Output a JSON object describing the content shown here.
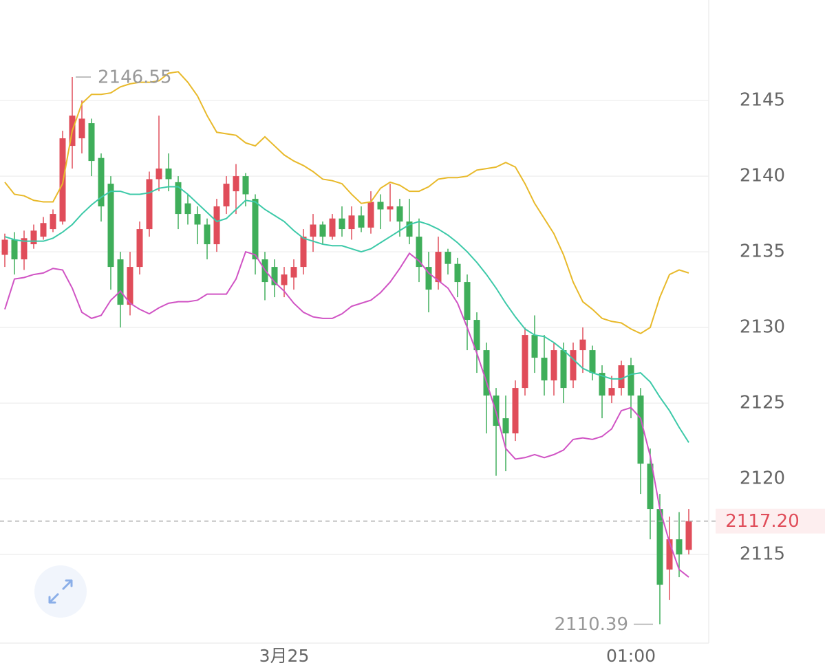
{
  "chart_data": {
    "type": "candlestick",
    "categories": [
      null,
      null,
      null,
      null,
      null,
      null,
      null,
      null,
      null,
      null,
      null,
      null,
      null,
      null,
      null,
      null,
      null,
      null,
      null,
      null,
      null,
      null,
      null,
      null,
      null,
      null,
      null,
      null,
      null,
      "3月25",
      null,
      null,
      null,
      null,
      null,
      null,
      null,
      null,
      null,
      null,
      null,
      null,
      null,
      null,
      null,
      null,
      null,
      null,
      null,
      null,
      null,
      null,
      null,
      null,
      null,
      null,
      null,
      null,
      null,
      null,
      null,
      null,
      null,
      null,
      null,
      "01:00",
      null,
      null,
      null,
      null,
      null,
      null
    ],
    "open": [
      2134.8,
      2135.8,
      2134.5,
      2135.5,
      2136.0,
      2136.5,
      2137.0,
      2142.0,
      2142.5,
      2143.5,
      2141.2,
      2139.5,
      2134.5,
      2131.5,
      2134.0,
      2136.5,
      2139.8,
      2140.5,
      2139.6,
      2138.2,
      2137.5,
      2136.8,
      2135.5,
      2138.0,
      2139.0,
      2140.0,
      2138.5,
      2134.5,
      2134.0,
      2132.8,
      2133.3,
      2134.0,
      2136.0,
      2136.8,
      2136.0,
      2137.2,
      2136.5,
      2137.4,
      2136.6,
      2138.3,
      2137.8,
      2138.0,
      2137.0,
      2136.0,
      2134.0,
      2133.0,
      2135.0,
      2134.2,
      2133.0,
      2130.5,
      2128.5,
      2125.5,
      2124.0,
      2123.0,
      2126.0,
      2129.5,
      2128.0,
      2126.5,
      2128.5,
      2126.5,
      2128.5,
      2128.5,
      2127.0,
      2125.5,
      2126.0,
      2127.5,
      2125.5,
      2121.0,
      2118.0,
      2114.0,
      2116.0,
      2115.3
    ],
    "high": [
      2136.2,
      2136.3,
      2136.4,
      2136.8,
      2137.3,
      2137.8,
      2143.0,
      2146.55,
      2145.0,
      2143.8,
      2141.5,
      2140.0,
      2135.0,
      2135.0,
      2137.0,
      2140.3,
      2144.0,
      2141.5,
      2140.0,
      2138.8,
      2138.0,
      2137.2,
      2138.5,
      2140.0,
      2140.8,
      2140.2,
      2138.8,
      2135.0,
      2134.5,
      2134.0,
      2134.5,
      2136.5,
      2137.5,
      2137.0,
      2137.5,
      2138.0,
      2138.0,
      2138.0,
      2139.0,
      2138.8,
      2139.5,
      2138.5,
      2138.5,
      2137.2,
      2135.0,
      2136.0,
      2135.2,
      2134.6,
      2133.5,
      2131.0,
      2129.0,
      2126.0,
      2125.5,
      2126.5,
      2130.0,
      2130.8,
      2129.5,
      2129.0,
      2129.0,
      2129.0,
      2130.0,
      2128.8,
      2127.5,
      2126.8,
      2127.8,
      2128.0,
      2126.0,
      2122.0,
      2119.0,
      2117.5,
      2117.8,
      2118.0
    ],
    "low": [
      2134.0,
      2133.5,
      2133.8,
      2135.2,
      2135.8,
      2136.3,
      2136.8,
      2140.5,
      2141.5,
      2140.0,
      2137.0,
      2132.5,
      2130.0,
      2130.8,
      2133.5,
      2136.0,
      2139.0,
      2139.0,
      2136.5,
      2136.8,
      2135.5,
      2134.5,
      2135.0,
      2137.5,
      2137.5,
      2138.0,
      2133.5,
      2131.8,
      2132.0,
      2132.0,
      2132.5,
      2133.5,
      2135.0,
      2135.5,
      2135.8,
      2136.0,
      2135.8,
      2136.3,
      2136.2,
      2136.5,
      2137.0,
      2136.0,
      2135.5,
      2133.0,
      2131.0,
      2132.5,
      2133.5,
      2132.0,
      2128.5,
      2127.0,
      2123.0,
      2120.2,
      2120.5,
      2122.5,
      2125.5,
      2127.0,
      2125.5,
      2125.5,
      2125.0,
      2126.0,
      2127.0,
      2126.5,
      2124.0,
      2125.0,
      2125.5,
      2124.0,
      2119.0,
      2116.0,
      2110.39,
      2112.0,
      2113.5,
      2115.0
    ],
    "close": [
      2135.8,
      2134.5,
      2135.9,
      2136.4,
      2136.9,
      2137.5,
      2142.5,
      2144.0,
      2143.8,
      2141.0,
      2138.0,
      2134.0,
      2131.5,
      2134.0,
      2136.5,
      2139.8,
      2140.5,
      2139.8,
      2137.5,
      2137.5,
      2136.8,
      2135.5,
      2138.0,
      2139.5,
      2140.0,
      2138.8,
      2134.5,
      2133.0,
      2132.8,
      2133.5,
      2134.0,
      2136.0,
      2136.8,
      2136.0,
      2137.2,
      2136.5,
      2137.4,
      2136.6,
      2138.3,
      2137.8,
      2138.0,
      2137.0,
      2136.0,
      2134.0,
      2132.5,
      2135.0,
      2134.2,
      2133.0,
      2130.5,
      2128.5,
      2125.5,
      2123.5,
      2123.0,
      2126.0,
      2129.5,
      2128.0,
      2126.5,
      2128.5,
      2126.0,
      2128.5,
      2129.2,
      2127.0,
      2125.5,
      2126.0,
      2127.5,
      2125.5,
      2121.0,
      2118.0,
      2113.0,
      2116.0,
      2115.0,
      2117.2
    ],
    "up_color": "#e04d5a",
    "down_color": "#3fae5a",
    "lines": [
      {
        "color": "#e8b92a",
        "values": [
          2139.6,
          2138.8,
          2138.7,
          2138.4,
          2138.3,
          2138.3,
          2139.5,
          2143.0,
          2144.8,
          2145.4,
          2145.4,
          2145.5,
          2145.9,
          2146.1,
          2146.2,
          2146.2,
          2146.3,
          2146.8,
          2146.9,
          2146.2,
          2145.3,
          2144.0,
          2142.9,
          2142.8,
          2142.7,
          2142.2,
          2142.0,
          2142.6,
          2142.0,
          2141.4,
          2141.0,
          2140.7,
          2140.3,
          2139.8,
          2139.7,
          2139.5,
          2138.8,
          2138.2,
          2138.3,
          2139.2,
          2139.6,
          2139.4,
          2139.0,
          2139.0,
          2139.3,
          2139.8,
          2139.9,
          2139.9,
          2140.0,
          2140.4,
          2140.5,
          2140.6,
          2140.9,
          2140.6,
          2139.5,
          2138.2,
          2137.2,
          2136.2,
          2134.8,
          2133.0,
          2131.7,
          2131.2,
          2130.6,
          2130.4,
          2130.3,
          2129.9,
          2129.6,
          2130.0,
          2132.0,
          2133.5,
          2133.8,
          2133.6
        ]
      },
      {
        "color": "#3cc9a8",
        "values": [
          2136.0,
          2135.8,
          2135.7,
          2135.7,
          2135.7,
          2135.9,
          2136.3,
          2136.8,
          2137.5,
          2138.1,
          2138.6,
          2139.0,
          2139.0,
          2138.8,
          2138.8,
          2138.9,
          2139.2,
          2139.3,
          2139.3,
          2138.8,
          2138.2,
          2137.6,
          2137.0,
          2137.2,
          2137.8,
          2138.4,
          2138.3,
          2137.8,
          2137.4,
          2137.0,
          2136.4,
          2135.9,
          2135.7,
          2135.5,
          2135.4,
          2135.4,
          2135.2,
          2135.0,
          2135.2,
          2135.6,
          2136.0,
          2136.4,
          2136.8,
          2137.0,
          2136.8,
          2136.5,
          2136.1,
          2135.6,
          2135.0,
          2134.3,
          2133.5,
          2132.6,
          2131.6,
          2130.7,
          2129.9,
          2129.5,
          2129.4,
          2129.0,
          2128.5,
          2127.9,
          2127.3,
          2127.0,
          2126.8,
          2126.6,
          2126.6,
          2126.9,
          2127.0,
          2126.4,
          2125.4,
          2124.5,
          2123.4,
          2122.4
        ]
      },
      {
        "color": "#d053c4",
        "values": [
          2131.2,
          2133.2,
          2133.3,
          2133.5,
          2133.6,
          2133.9,
          2133.8,
          2132.6,
          2131.0,
          2130.6,
          2130.8,
          2131.8,
          2132.4,
          2131.6,
          2131.2,
          2130.9,
          2131.3,
          2131.6,
          2131.7,
          2131.7,
          2131.8,
          2132.2,
          2132.2,
          2132.2,
          2133.2,
          2135.0,
          2134.8,
          2133.8,
          2133.0,
          2132.4,
          2131.6,
          2131.0,
          2130.7,
          2130.6,
          2130.6,
          2130.9,
          2131.4,
          2131.6,
          2131.8,
          2132.3,
          2133.0,
          2133.9,
          2134.9,
          2134.4,
          2133.6,
          2133.1,
          2132.6,
          2131.6,
          2130.0,
          2128.3,
          2126.4,
          2124.4,
          2122.0,
          2121.3,
          2121.4,
          2121.6,
          2121.4,
          2121.6,
          2121.9,
          2122.6,
          2122.7,
          2122.6,
          2122.8,
          2123.3,
          2124.5,
          2124.7,
          2124.0,
          2121.5,
          2118.0,
          2115.8,
          2114.0,
          2113.5
        ]
      }
    ],
    "last_price": {
      "value": 2117.2,
      "label": "2117.20"
    },
    "ylim": [
      2109.14,
      2151.64
    ],
    "yticks": [
      2115,
      2120,
      2125,
      2130,
      2135,
      2140,
      2145
    ],
    "grid": true
  }
}
